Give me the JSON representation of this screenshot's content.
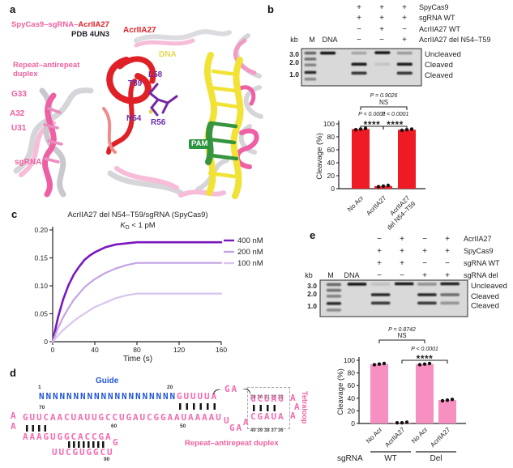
{
  "panel_a": {
    "letter": "a",
    "legend_pink": "SpyCas9–sgRNA–",
    "legend_red": "AcrIIA27",
    "pdb_label": "PDB 4UN3",
    "acr_label": "AcrIIA27",
    "dna_label": "DNA",
    "repeat_line1": "Repeat–antirepeat",
    "repeat_line2": "duplex",
    "g33": "G33",
    "a32": "A32",
    "u31": "U31",
    "sgrna_label": "sgRNA",
    "l58": "L58",
    "t59": "T59",
    "n54": "N54",
    "r56": "R56",
    "pam_label": "PAM"
  },
  "panel_b": {
    "letter": "b",
    "conditions": [
      {
        "symbols": [
          "+",
          "+",
          "+"
        ],
        "label": "SpyCas9"
      },
      {
        "symbols": [
          "+",
          "+",
          "+"
        ],
        "label": "sgRNA WT"
      },
      {
        "symbols": [
          "−",
          "+",
          "−"
        ],
        "label": "AcrIIA27 WT"
      },
      {
        "symbols": [
          "−",
          "−",
          "+"
        ],
        "label": "AcrIIA27 del N54–T59"
      }
    ],
    "gel": {
      "kb_label": "kb",
      "m_label": "M",
      "dna_label": "DNA",
      "markers": [
        {
          "text": "3.0",
          "y": 0.15
        },
        {
          "text": "2.0",
          "y": 0.37
        },
        {
          "text": "1.0",
          "y": 0.7
        }
      ],
      "band_labels": [
        {
          "text": "Uncleaved",
          "y": 0.15
        },
        {
          "text": "Cleaved",
          "y": 0.43
        },
        {
          "text": "Cleaved",
          "y": 0.72
        }
      ],
      "lanes": [
        {
          "x": 0.074,
          "w": 0.1,
          "bands": [
            [
              0.12,
              0.55
            ],
            [
              0.28,
              0.5
            ],
            [
              0.44,
              0.42
            ],
            [
              0.64,
              0.85
            ],
            [
              0.82,
              0.38
            ]
          ]
        },
        {
          "x": 0.22,
          "w": 0.13,
          "bands": [
            [
              0.12,
              0.95
            ]
          ]
        },
        {
          "x": 0.48,
          "w": 0.13,
          "bands": [
            [
              0.12,
              0.25
            ],
            [
              0.42,
              0.92
            ],
            [
              0.66,
              0.8
            ]
          ]
        },
        {
          "x": 0.675,
          "w": 0.13,
          "bands": [
            [
              0.11,
              0.95
            ],
            [
              0.42,
              0.1
            ]
          ]
        },
        {
          "x": 0.86,
          "w": 0.13,
          "bands": [
            [
              0.12,
              0.3
            ],
            [
              0.42,
              0.92
            ],
            [
              0.66,
              0.8
            ]
          ]
        }
      ]
    }
  },
  "panel_c": {
    "letter": "c"
  },
  "panel_d": {
    "letter": "d",
    "guide_label": "Guide",
    "num_1": "1",
    "num_20": "20",
    "num_70": "70",
    "num_60": "60",
    "num_50": "50",
    "num_90": "90",
    "guide_seq": "NNNNNNNNNNNNNNNNNNNN",
    "seq_top": "GUUUUA",
    "loop_ga": "GA",
    "box_top": "GCUAG",
    "box_bottom": "CGAUA",
    "box_nums_top": [
      "29",
      "30",
      "31",
      "32",
      "33"
    ],
    "box_nums_bottom": [
      "40",
      "39",
      "38",
      "37",
      "36"
    ],
    "tetraloop_letters": [
      "A",
      "A",
      "A"
    ],
    "tetraloop_label": "Tetraloop",
    "mid_margin": [
      "A",
      "A"
    ],
    "mid_seq": "GUUCAACUAUUGCCUGAUCGGAAUAAAAU",
    "connector": [
      "U",
      "GA",
      "A"
    ],
    "row3_seq": "AAAGUGGCACCGA",
    "row3_tail": "G",
    "row4_seq": "UUCGUGGCU",
    "duplex_label": "Repeat–antirepeat duplex"
  },
  "panel_e": {
    "letter": "e",
    "conditions": [
      {
        "symbols": [
          "−",
          "+",
          "−",
          "+"
        ],
        "label": "AcrIIA27"
      },
      {
        "symbols": [
          "+",
          "+",
          "+",
          "+"
        ],
        "label": "SpyCas9"
      },
      {
        "symbols": [
          "+",
          "+",
          "−",
          "−"
        ],
        "label": "sgRNA WT"
      },
      {
        "symbols": [
          "−",
          "−",
          "+",
          "+"
        ],
        "label": "sgRNA del"
      }
    ],
    "gel": {
      "kb_label": "kb",
      "m_label": "M",
      "dna_label": "DNA",
      "markers": [
        {
          "text": "3.0",
          "y": 0.16
        },
        {
          "text": "2.0",
          "y": 0.38
        },
        {
          "text": "1.0",
          "y": 0.71
        }
      ],
      "band_labels": [
        {
          "text": "Uncleaved",
          "y": 0.15
        },
        {
          "text": "Cleaved",
          "y": 0.44
        },
        {
          "text": "Cleaved",
          "y": 0.7
        }
      ],
      "lanes": [
        {
          "x": 0.093,
          "w": 0.1,
          "bands": [
            [
              0.12,
              0.55
            ],
            [
              0.28,
              0.5
            ],
            [
              0.44,
              0.42
            ],
            [
              0.64,
              0.85
            ],
            [
              0.82,
              0.38
            ]
          ]
        },
        {
          "x": 0.25,
          "w": 0.13,
          "bands": [
            [
              0.11,
              0.95
            ]
          ]
        },
        {
          "x": 0.41,
          "w": 0.13,
          "bands": [
            [
              0.11,
              0.12
            ],
            [
              0.4,
              0.88
            ],
            [
              0.63,
              0.78
            ]
          ]
        },
        {
          "x": 0.57,
          "w": 0.13,
          "bands": [
            [
              0.1,
              0.95
            ]
          ]
        },
        {
          "x": 0.725,
          "w": 0.13,
          "bands": [
            [
              0.11,
              0.35
            ],
            [
              0.4,
              0.88
            ],
            [
              0.63,
              0.78
            ]
          ]
        },
        {
          "x": 0.88,
          "w": 0.13,
          "bands": [
            [
              0.1,
              0.92
            ],
            [
              0.4,
              0.55
            ],
            [
              0.63,
              0.33
            ]
          ]
        }
      ]
    }
  },
  "chart_data": [
    {
      "id": "b_cleavage",
      "type": "bar",
      "categories": [
        [
          "No Acr"
        ],
        [
          "AcrIIA27"
        ],
        [
          "AcrIIA27",
          "del N54–T59"
        ]
      ],
      "values": [
        92,
        4,
        91
      ],
      "points": [
        [
          91,
          92,
          93
        ],
        [
          3,
          4,
          5
        ],
        [
          90,
          91,
          92
        ]
      ],
      "ylabel": "Cleavage (%)",
      "ylim": [
        0,
        100
      ],
      "yticks": [
        0,
        20,
        40,
        60,
        80,
        100
      ],
      "bar_color": "#ee1b24",
      "stats": [
        {
          "text": "P = 0.9026",
          "sub": "NS",
          "from": 0,
          "to": 2
        },
        {
          "text": "P < 0.0001",
          "sub": "****",
          "from": 0,
          "to": 1
        },
        {
          "text": "P < 0.0001",
          "sub": "****",
          "from": 1,
          "to": 2
        }
      ]
    },
    {
      "id": "c_binding",
      "type": "line",
      "title": "AcrIIA27 del N54–T59/sgRNA (SpyCas9)",
      "kd": {
        "symbol": "K",
        "subscript": "D",
        "rest": " < 1 pM"
      },
      "xlabel": "Time (s)",
      "xlim": [
        0,
        160
      ],
      "xticks": [
        0,
        40,
        80,
        120,
        160
      ],
      "ylim": [
        0,
        0.2
      ],
      "yticks": [
        "0",
        "0.05",
        "0.10",
        "0.15",
        "0.20"
      ],
      "grid": false,
      "legend_position": "right",
      "x": [
        0,
        5,
        10,
        15,
        20,
        25,
        30,
        35,
        40,
        50,
        60,
        70,
        80,
        160
      ],
      "series": [
        {
          "name": "400 nM",
          "color": "#7a18bc",
          "width": 2.6,
          "y": [
            0,
            0.043,
            0.076,
            0.101,
            0.12,
            0.134,
            0.146,
            0.154,
            0.16,
            0.169,
            0.174,
            0.176,
            0.178,
            0.178
          ]
        },
        {
          "name": "200 nM",
          "color": "#c2a4e4",
          "width": 2.2,
          "y": [
            0,
            0.024,
            0.044,
            0.06,
            0.075,
            0.086,
            0.097,
            0.105,
            0.112,
            0.123,
            0.131,
            0.137,
            0.141,
            0.141
          ]
        },
        {
          "name": "100 nM",
          "color": "#d8c5ef",
          "width": 2.2,
          "y": [
            0,
            0.011,
            0.021,
            0.029,
            0.037,
            0.044,
            0.05,
            0.056,
            0.062,
            0.07,
            0.078,
            0.083,
            0.086,
            0.086
          ]
        }
      ]
    },
    {
      "id": "e_cleavage",
      "type": "bar",
      "categories": [
        [
          "No Acr"
        ],
        [
          "AcrIIA27"
        ],
        [
          "No Acr"
        ],
        [
          "AcrIIA27"
        ]
      ],
      "values": [
        94,
        1,
        94,
        37
      ],
      "points": [
        [
          93,
          94,
          95
        ],
        [
          1,
          1,
          2
        ],
        [
          93,
          94,
          95
        ],
        [
          36,
          37,
          38
        ]
      ],
      "ylabel": "Cleavage (%)",
      "ylim": [
        0,
        100
      ],
      "yticks": [
        0,
        20,
        40,
        60,
        80,
        100
      ],
      "bar_color": "#f78fc0",
      "stats": [
        {
          "text": "P = 0.8742",
          "sub": "NS",
          "from": 0,
          "to": 2
        },
        {
          "text": "P < 0.0001",
          "sub": "****",
          "from": 1,
          "to": 3
        }
      ],
      "group_axis_label": "sgRNA",
      "groups": [
        {
          "label": "WT",
          "from": 0,
          "to": 1
        },
        {
          "label": "Del",
          "from": 2,
          "to": 3
        }
      ]
    }
  ]
}
